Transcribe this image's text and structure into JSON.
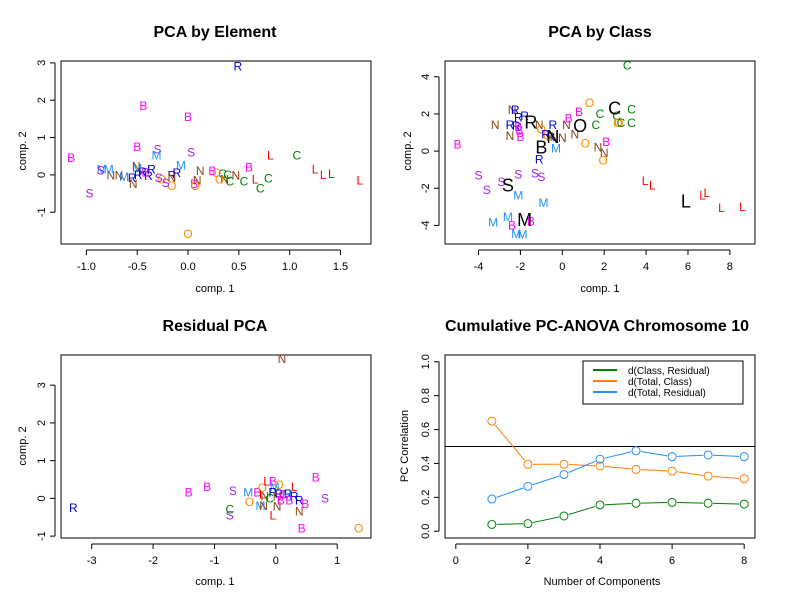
{
  "colors": {
    "B": "#ff00ff",
    "S": "#a020f0",
    "M": "#1e90ff",
    "R": "#0000cd",
    "N": "#8b4513",
    "O": "#ff8c00",
    "C": "#008000",
    "L": "#ff0000",
    "centroid": "#000000",
    "class_residual": "#008000",
    "total_class": "#ff7f00",
    "total_residual": "#1e90ff",
    "refline": "#000000"
  },
  "chart_data": [
    {
      "id": "pca-element",
      "type": "scatter",
      "title": "PCA by Element",
      "xlabel": "comp. 1",
      "ylabel": "comp. 2",
      "xlim": [
        -1.25,
        1.8
      ],
      "ylim": [
        -1.85,
        3.05
      ],
      "xticks": [
        -1.0,
        -0.5,
        0.0,
        0.5,
        1.0,
        1.5
      ],
      "xtick_labels": [
        "-1.0",
        "-0.5",
        "0.0",
        "0.5",
        "1.0",
        "1.5"
      ],
      "yticks": [
        -1,
        0,
        1,
        2,
        3
      ],
      "ytick_labels": [
        "-1",
        "0",
        "1",
        "2",
        "3"
      ],
      "points": [
        {
          "label": "R",
          "x": 0.49,
          "y": 2.9
        },
        {
          "label": "B",
          "x": -0.44,
          "y": 1.85
        },
        {
          "label": "B",
          "x": 0.0,
          "y": 1.55
        },
        {
          "label": "B",
          "x": -0.5,
          "y": 0.75
        },
        {
          "label": "S",
          "x": -0.3,
          "y": 0.68
        },
        {
          "label": "M",
          "x": -0.31,
          "y": 0.52
        },
        {
          "label": "S",
          "x": 0.03,
          "y": 0.6
        },
        {
          "label": "B",
          "x": -1.15,
          "y": 0.45
        },
        {
          "label": "S",
          "x": -0.97,
          "y": -0.5
        },
        {
          "label": "L",
          "x": 0.81,
          "y": 0.52
        },
        {
          "label": "C",
          "x": 1.07,
          "y": 0.52
        },
        {
          "label": "B",
          "x": 0.6,
          "y": 0.2
        },
        {
          "label": "L",
          "x": 1.25,
          "y": 0.15
        },
        {
          "label": "L",
          "x": 1.33,
          "y": 0.0
        },
        {
          "label": "L",
          "x": 1.41,
          "y": 0.03
        },
        {
          "label": "L",
          "x": 1.69,
          "y": -0.15
        },
        {
          "label": "L",
          "x": 0.66,
          "y": -0.12
        },
        {
          "label": "C",
          "x": 0.79,
          "y": -0.1
        },
        {
          "label": "C",
          "x": 0.71,
          "y": -0.37
        },
        {
          "label": "C",
          "x": 0.55,
          "y": -0.17
        },
        {
          "label": "C",
          "x": 0.41,
          "y": -0.18
        },
        {
          "label": "C",
          "x": 0.34,
          "y": 0.02
        },
        {
          "label": "C",
          "x": 0.39,
          "y": 0.0
        },
        {
          "label": "N",
          "x": 0.36,
          "y": -0.12
        },
        {
          "label": "N",
          "x": 0.47,
          "y": -0.02
        },
        {
          "label": "O",
          "x": 0.28,
          "y": 0.05
        },
        {
          "label": "O",
          "x": 0.31,
          "y": -0.12
        },
        {
          "label": "B",
          "x": 0.24,
          "y": 0.1
        },
        {
          "label": "N",
          "x": 0.12,
          "y": 0.1
        },
        {
          "label": "N",
          "x": 0.09,
          "y": -0.15
        },
        {
          "label": "B",
          "x": 0.06,
          "y": -0.25
        },
        {
          "label": "O",
          "x": 0.07,
          "y": -0.3
        },
        {
          "label": "O",
          "x": 0.0,
          "y": -1.58
        },
        {
          "label": "M",
          "x": -0.07,
          "y": 0.25
        },
        {
          "label": "R",
          "x": -0.11,
          "y": 0.05
        },
        {
          "label": "R",
          "x": -0.16,
          "y": -0.02
        },
        {
          "label": "N",
          "x": -0.16,
          "y": -0.08
        },
        {
          "label": "O",
          "x": -0.16,
          "y": -0.3
        },
        {
          "label": "O",
          "x": -0.26,
          "y": -0.12
        },
        {
          "label": "S",
          "x": -0.29,
          "y": -0.08
        },
        {
          "label": "S",
          "x": -0.22,
          "y": -0.22
        },
        {
          "label": "R",
          "x": -0.36,
          "y": 0.15
        },
        {
          "label": "R",
          "x": -0.39,
          "y": -0.03
        },
        {
          "label": "B",
          "x": -0.42,
          "y": 0.07
        },
        {
          "label": "R",
          "x": -0.45,
          "y": 0.08
        },
        {
          "label": "M",
          "x": -0.5,
          "y": 0.17
        },
        {
          "label": "N",
          "x": -0.51,
          "y": 0.22
        },
        {
          "label": "R",
          "x": -0.49,
          "y": 0.0
        },
        {
          "label": "R",
          "x": -0.55,
          "y": -0.08
        },
        {
          "label": "N",
          "x": -0.54,
          "y": -0.25
        },
        {
          "label": "M",
          "x": -0.63,
          "y": -0.05
        },
        {
          "label": "N",
          "x": -0.68,
          "y": -0.02
        },
        {
          "label": "N",
          "x": -0.76,
          "y": -0.02
        },
        {
          "label": "M",
          "x": -0.78,
          "y": 0.15
        },
        {
          "label": "M",
          "x": -0.85,
          "y": 0.15
        },
        {
          "label": "S",
          "x": -0.86,
          "y": 0.12
        }
      ]
    },
    {
      "id": "pca-class",
      "type": "scatter",
      "title": "PCA by Class",
      "xlabel": "comp. 1",
      "ylabel": "comp. 2",
      "xlim": [
        -5.6,
        9.2
      ],
      "ylim": [
        -5.0,
        4.85
      ],
      "xticks": [
        -4,
        -2,
        0,
        2,
        4,
        6,
        8
      ],
      "xtick_labels": [
        "-4",
        "-2",
        "0",
        "2",
        "4",
        "6",
        "8"
      ],
      "yticks": [
        -4,
        -2,
        0,
        2,
        4
      ],
      "ytick_labels": [
        "-4",
        "-2",
        "0",
        "2",
        "4"
      ],
      "points": [
        {
          "label": "C",
          "x": 3.1,
          "y": 4.6
        },
        {
          "label": "O",
          "x": 1.3,
          "y": 2.6
        },
        {
          "label": "C",
          "x": 3.3,
          "y": 2.25
        },
        {
          "label": "C",
          "x": 1.8,
          "y": 2.0
        },
        {
          "label": "C",
          "x": 2.6,
          "y": 1.9
        },
        {
          "label": "O",
          "x": 2.7,
          "y": 1.5
        },
        {
          "label": "O",
          "x": 2.65,
          "y": 1.5
        },
        {
          "label": "C",
          "x": 2.8,
          "y": 1.5
        },
        {
          "label": "C",
          "x": 3.3,
          "y": 1.5
        },
        {
          "label": "C",
          "x": 1.6,
          "y": 1.4
        },
        {
          "label": "B",
          "x": 0.8,
          "y": 2.1
        },
        {
          "label": "B",
          "x": 0.3,
          "y": 1.75
        },
        {
          "label": "N",
          "x": 0.2,
          "y": 1.4
        },
        {
          "label": "N",
          "x": 0.6,
          "y": 0.9
        },
        {
          "label": "O",
          "x": 1.1,
          "y": 0.4
        },
        {
          "label": "N",
          "x": 1.7,
          "y": 0.2
        },
        {
          "label": "N",
          "x": 2.0,
          "y": -0.1
        },
        {
          "label": "B",
          "x": 2.1,
          "y": 0.5
        },
        {
          "label": "O",
          "x": 1.95,
          "y": -0.5
        },
        {
          "label": "N",
          "x": -3.2,
          "y": 1.4
        },
        {
          "label": "N",
          "x": -2.4,
          "y": 2.2
        },
        {
          "label": "R",
          "x": -2.25,
          "y": 2.2
        },
        {
          "label": "R",
          "x": -2.1,
          "y": 1.8
        },
        {
          "label": "R",
          "x": -1.8,
          "y": 1.9
        },
        {
          "label": "R",
          "x": -2.5,
          "y": 1.4
        },
        {
          "label": "R",
          "x": -2.2,
          "y": 1.35
        },
        {
          "label": "B",
          "x": -2.1,
          "y": 1.3
        },
        {
          "label": "B",
          "x": -2.05,
          "y": 1.1
        },
        {
          "label": "N",
          "x": -2.5,
          "y": 0.8
        },
        {
          "label": "B",
          "x": -2.0,
          "y": 0.75
        },
        {
          "label": "N",
          "x": -1.1,
          "y": 1.4
        },
        {
          "label": "O",
          "x": -1.0,
          "y": 1.15
        },
        {
          "label": "O",
          "x": -0.7,
          "y": 0.85
        },
        {
          "label": "R",
          "x": -0.45,
          "y": 1.4
        },
        {
          "label": "R",
          "x": -0.8,
          "y": 0.9
        },
        {
          "label": "R",
          "x": -0.55,
          "y": 0.75
        },
        {
          "label": "N",
          "x": -0.4,
          "y": 0.75
        },
        {
          "label": "N",
          "x": 0.0,
          "y": 0.7
        },
        {
          "label": "M",
          "x": -0.3,
          "y": 0.15
        },
        {
          "label": "R",
          "x": -1.1,
          "y": -0.45
        },
        {
          "label": "B",
          "x": -5.0,
          "y": 0.35
        },
        {
          "label": "S",
          "x": -4.0,
          "y": -1.3
        },
        {
          "label": "S",
          "x": -2.1,
          "y": -1.25
        },
        {
          "label": "S",
          "x": -1.3,
          "y": -1.2
        },
        {
          "label": "S",
          "x": -1.0,
          "y": -1.4
        },
        {
          "label": "S",
          "x": -2.9,
          "y": -1.65
        },
        {
          "label": "S",
          "x": -3.6,
          "y": -2.1
        },
        {
          "label": "M",
          "x": -2.1,
          "y": -2.4
        },
        {
          "label": "M",
          "x": -0.9,
          "y": -2.8
        },
        {
          "label": "M",
          "x": -3.3,
          "y": -3.85
        },
        {
          "label": "M",
          "x": -2.6,
          "y": -3.55
        },
        {
          "label": "B",
          "x": -2.4,
          "y": -4.0
        },
        {
          "label": "B",
          "x": -1.5,
          "y": -3.8
        },
        {
          "label": "M",
          "x": -2.2,
          "y": -4.45
        },
        {
          "label": "M",
          "x": -1.9,
          "y": -4.5
        },
        {
          "label": "L",
          "x": 3.95,
          "y": -1.6
        },
        {
          "label": "L",
          "x": 4.3,
          "y": -1.85
        },
        {
          "label": "L",
          "x": 6.7,
          "y": -2.4
        },
        {
          "label": "L",
          "x": 6.9,
          "y": -2.25
        },
        {
          "label": "L",
          "x": 7.6,
          "y": -3.05
        },
        {
          "label": "L",
          "x": 8.6,
          "y": -3.0
        }
      ],
      "centroids": [
        {
          "label": "C",
          "x": 2.5,
          "y": 2.3
        },
        {
          "label": "O",
          "x": 0.85,
          "y": 1.35
        },
        {
          "label": "R",
          "x": -1.5,
          "y": 1.55
        },
        {
          "label": "N",
          "x": -0.45,
          "y": 0.75
        },
        {
          "label": "B",
          "x": -1.0,
          "y": 0.2
        },
        {
          "label": "S",
          "x": -2.6,
          "y": -1.85
        },
        {
          "label": "M",
          "x": -1.8,
          "y": -3.7
        },
        {
          "label": "L",
          "x": 5.9,
          "y": -2.7
        }
      ]
    },
    {
      "id": "residual-pca",
      "type": "scatter",
      "title": "Residual PCA",
      "xlabel": "comp. 1",
      "ylabel": "comp. 2",
      "xlim": [
        -3.5,
        1.55
      ],
      "ylim": [
        -1.05,
        3.8
      ],
      "xticks": [
        -3,
        -2,
        -1,
        0,
        1
      ],
      "xtick_labels": [
        "-3",
        "-2",
        "-1",
        "0",
        "1"
      ],
      "yticks": [
        -1,
        0,
        1,
        2,
        3
      ],
      "ytick_labels": [
        "-1",
        "0",
        "1",
        "2",
        "3"
      ],
      "points": [
        {
          "label": "N",
          "x": 0.1,
          "y": 3.7
        },
        {
          "label": "R",
          "x": -3.3,
          "y": -0.25
        },
        {
          "label": "B",
          "x": -1.42,
          "y": 0.15
        },
        {
          "label": "B",
          "x": -1.12,
          "y": 0.3
        },
        {
          "label": "S",
          "x": -0.7,
          "y": 0.2
        },
        {
          "label": "C",
          "x": -0.75,
          "y": -0.3
        },
        {
          "label": "S",
          "x": -0.75,
          "y": -0.45
        },
        {
          "label": "M",
          "x": -0.45,
          "y": 0.15
        },
        {
          "label": "O",
          "x": -0.43,
          "y": -0.1
        },
        {
          "label": "B",
          "x": -0.3,
          "y": 0.15
        },
        {
          "label": "O",
          "x": -0.22,
          "y": 0.27
        },
        {
          "label": "L",
          "x": -0.15,
          "y": 0.45
        },
        {
          "label": "B",
          "x": -0.05,
          "y": 0.45
        },
        {
          "label": "O",
          "x": 0.05,
          "y": 0.35
        },
        {
          "label": "M",
          "x": -0.02,
          "y": 0.3
        },
        {
          "label": "L",
          "x": 0.3,
          "y": 0.3
        },
        {
          "label": "L",
          "x": -0.22,
          "y": 0.1
        },
        {
          "label": "N",
          "x": -0.18,
          "y": 0.05
        },
        {
          "label": "R",
          "x": -0.05,
          "y": 0.15
        },
        {
          "label": "R",
          "x": 0.05,
          "y": 0.12
        },
        {
          "label": "B",
          "x": 0.12,
          "y": 0.1
        },
        {
          "label": "R",
          "x": 0.2,
          "y": 0.12
        },
        {
          "label": "M",
          "x": 0.18,
          "y": 0.08
        },
        {
          "label": "N",
          "x": 0.02,
          "y": 0.05
        },
        {
          "label": "C",
          "x": -0.1,
          "y": 0.0
        },
        {
          "label": "R",
          "x": 0.3,
          "y": 0.05
        },
        {
          "label": "B",
          "x": 0.08,
          "y": -0.05
        },
        {
          "label": "B",
          "x": 0.22,
          "y": -0.05
        },
        {
          "label": "R",
          "x": 0.38,
          "y": -0.05
        },
        {
          "label": "B",
          "x": 0.48,
          "y": -0.15
        },
        {
          "label": "M",
          "x": -0.25,
          "y": -0.2
        },
        {
          "label": "N",
          "x": -0.2,
          "y": -0.2
        },
        {
          "label": "N",
          "x": 0.02,
          "y": -0.22
        },
        {
          "label": "L",
          "x": -0.05,
          "y": -0.45
        },
        {
          "label": "N",
          "x": 0.38,
          "y": -0.35
        },
        {
          "label": "B",
          "x": 0.65,
          "y": 0.55
        },
        {
          "label": "S",
          "x": 0.8,
          "y": 0.0
        },
        {
          "label": "B",
          "x": 0.42,
          "y": -0.8
        },
        {
          "label": "O",
          "x": 1.35,
          "y": -0.8
        }
      ]
    },
    {
      "id": "cumulative-pc-anova",
      "type": "line",
      "title": "Cumulative PC-ANOVA Chromosome 10",
      "xlabel": "Number of Components",
      "ylabel": "PC Correlation",
      "xlim": [
        -0.3,
        8.3
      ],
      "ylim": [
        -0.04,
        1.04
      ],
      "xticks": [
        0,
        2,
        4,
        6,
        8
      ],
      "xtick_labels": [
        "0",
        "2",
        "4",
        "6",
        "8"
      ],
      "yticks": [
        0.0,
        0.2,
        0.4,
        0.6,
        0.8,
        1.0
      ],
      "ytick_labels": [
        "0.0",
        "0.2",
        "0.4",
        "0.6",
        "0.8",
        "1.0"
      ],
      "hline": 0.5,
      "legend_position": "top-right",
      "x": [
        1,
        2,
        3,
        4,
        5,
        6,
        7,
        8
      ],
      "series": [
        {
          "name": "d(Class, Residual)",
          "color_key": "class_residual",
          "values": [
            0.04,
            0.045,
            0.09,
            0.155,
            0.165,
            0.17,
            0.165,
            0.16
          ]
        },
        {
          "name": "d(Total, Class)",
          "color_key": "total_class",
          "values": [
            0.65,
            0.395,
            0.395,
            0.385,
            0.365,
            0.355,
            0.325,
            0.31
          ]
        },
        {
          "name": "d(Total, Residual)",
          "color_key": "total_residual",
          "values": [
            0.19,
            0.265,
            0.335,
            0.425,
            0.475,
            0.44,
            0.45,
            0.44
          ]
        }
      ]
    }
  ]
}
